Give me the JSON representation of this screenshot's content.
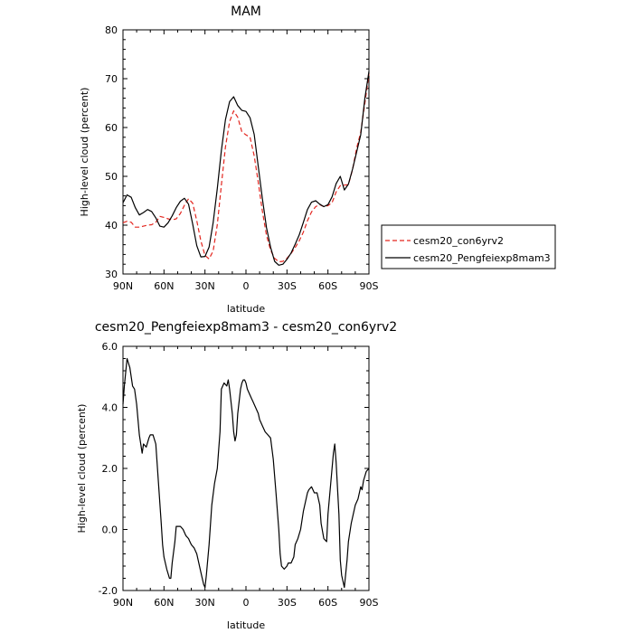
{
  "chart_data": [
    {
      "type": "line",
      "title": "MAM",
      "xlabel": "latitude",
      "ylabel": "High-level cloud (percent)",
      "xlim": [
        90,
        -90
      ],
      "ylim": [
        30,
        80
      ],
      "x_tick_labels": [
        "90N",
        "60N",
        "30N",
        "0",
        "30S",
        "60S",
        "90S"
      ],
      "y_tick_labels": [
        "30",
        "40",
        "50",
        "60",
        "70",
        "80"
      ],
      "legend_position": "right",
      "series": [
        {
          "name": "cesm20_con6yrv2",
          "color": "#e3261f",
          "style": "dashed",
          "x": [
            90,
            87,
            84,
            81,
            78,
            75,
            72,
            69,
            66,
            63,
            60,
            57,
            54,
            51,
            48,
            45,
            42,
            39,
            36,
            33,
            30,
            27,
            24,
            21,
            18,
            15,
            12,
            9,
            6,
            3,
            0,
            -3,
            -6,
            -9,
            -12,
            -15,
            -18,
            -21,
            -24,
            -27,
            -30,
            -33,
            -36,
            -39,
            -42,
            -45,
            -48,
            -51,
            -54,
            -57,
            -60,
            -63,
            -66,
            -69,
            -72,
            -75,
            -78,
            -81,
            -84,
            -87,
            -90
          ],
          "y": [
            40.5,
            40.8,
            40.6,
            39.6,
            39.6,
            39.8,
            40.0,
            40.1,
            40.6,
            41.8,
            41.6,
            41.3,
            41.1,
            41.3,
            42.4,
            44.1,
            45.4,
            44.5,
            40.9,
            36.8,
            33.8,
            33.1,
            34.7,
            40.1,
            48.2,
            56.0,
            61.2,
            63.4,
            62.1,
            59.1,
            58.5,
            58.0,
            54.2,
            48.8,
            42.9,
            37.9,
            34.9,
            33.2,
            32.5,
            32.6,
            33.2,
            34.2,
            35.4,
            36.8,
            38.6,
            40.9,
            42.7,
            43.8,
            44.2,
            43.8,
            44.0,
            44.6,
            46.8,
            48.1,
            48.2,
            48.3,
            51.4,
            55.8,
            59.0,
            65.0,
            71.0
          ]
        },
        {
          "name": "cesm20_Pengfeiexp8mam3",
          "color": "#000000",
          "style": "solid",
          "x": [
            90,
            87,
            84,
            81,
            78,
            75,
            72,
            69,
            66,
            63,
            60,
            57,
            54,
            51,
            48,
            45,
            42,
            39,
            36,
            33,
            30,
            27,
            24,
            21,
            18,
            15,
            12,
            9,
            6,
            3,
            0,
            -3,
            -6,
            -9,
            -12,
            -15,
            -18,
            -21,
            -24,
            -27,
            -30,
            -33,
            -36,
            -39,
            -42,
            -45,
            -48,
            -51,
            -54,
            -57,
            -60,
            -63,
            -66,
            -69,
            -72,
            -75,
            -78,
            -81,
            -84,
            -87,
            -90
          ],
          "y": [
            44.6,
            46.2,
            45.7,
            43.6,
            42.1,
            42.6,
            43.2,
            42.8,
            41.5,
            39.8,
            39.6,
            40.5,
            41.9,
            43.6,
            44.9,
            45.5,
            44.3,
            40.2,
            35.8,
            33.5,
            33.6,
            35.5,
            40.5,
            47.5,
            55.3,
            61.6,
            65.3,
            66.3,
            64.5,
            63.5,
            63.3,
            62.0,
            58.6,
            52.0,
            45.5,
            39.5,
            35.5,
            32.6,
            31.8,
            32.0,
            33.0,
            34.3,
            36.1,
            38.0,
            40.6,
            43.2,
            44.7,
            45.0,
            44.3,
            43.8,
            44.2,
            45.8,
            48.5,
            50.0,
            47.2,
            48.4,
            51.5,
            55.0,
            58.5,
            66.0,
            71.5
          ]
        }
      ]
    },
    {
      "type": "line",
      "title": "cesm20_Pengfeiexp8mam3 - cesm20_con6yrv2",
      "xlabel": "latitude",
      "ylabel": "High-level cloud (percent)",
      "xlim": [
        90,
        -90
      ],
      "ylim": [
        -2.0,
        6.0
      ],
      "x_tick_labels": [
        "90N",
        "60N",
        "30N",
        "0",
        "30S",
        "60S",
        "90S"
      ],
      "y_tick_labels": [
        "-2.0",
        "0.0",
        "2.0",
        "4.0",
        "6.0"
      ],
      "series": [
        {
          "color": "#000000",
          "style": "solid",
          "x": [
            90,
            89,
            87,
            85,
            83,
            81.5,
            80,
            78,
            76,
            75,
            73,
            71,
            70,
            68,
            66,
            64,
            62,
            61,
            60,
            58,
            56,
            55,
            54,
            52,
            51,
            50,
            48,
            46,
            45,
            44,
            42,
            41,
            40,
            38,
            36,
            35,
            33,
            31,
            30,
            29,
            27,
            25,
            23,
            21,
            19,
            18,
            16,
            14,
            13,
            12,
            10,
            9,
            8,
            7,
            6,
            4,
            3,
            2,
            1,
            0,
            -1,
            -2,
            -4,
            -5,
            -7,
            -9,
            -10,
            -12,
            -14,
            -16,
            -18,
            -20,
            -22,
            -24,
            -25,
            -26,
            -28,
            -30,
            -31,
            -33,
            -35,
            -36,
            -38,
            -40,
            -42,
            -44,
            -45,
            -46,
            -48,
            -50,
            -52,
            -54,
            -55,
            -57,
            -59,
            -60,
            -62,
            -64,
            -65,
            -66,
            -68,
            -69,
            -70,
            -72,
            -74,
            -75,
            -77,
            -79,
            -80,
            -82,
            -84,
            -85,
            -86,
            -88,
            -90
          ],
          "y": [
            4.1,
            4.7,
            5.6,
            5.3,
            4.7,
            4.6,
            4.1,
            3.1,
            2.5,
            2.8,
            2.7,
            3.0,
            3.1,
            3.1,
            2.8,
            1.5,
            0.2,
            -0.5,
            -0.9,
            -1.3,
            -1.6,
            -1.6,
            -1.1,
            -0.4,
            0.1,
            0.1,
            0.1,
            0.0,
            -0.1,
            -0.2,
            -0.3,
            -0.4,
            -0.5,
            -0.6,
            -0.8,
            -1.0,
            -1.4,
            -1.8,
            -1.9,
            -1.5,
            -0.5,
            0.8,
            1.5,
            2.0,
            3.2,
            4.6,
            4.8,
            4.7,
            4.9,
            4.6,
            3.8,
            3.2,
            2.9,
            3.1,
            3.8,
            4.6,
            4.8,
            4.9,
            4.9,
            4.8,
            4.6,
            4.5,
            4.3,
            4.2,
            4.0,
            3.8,
            3.6,
            3.4,
            3.2,
            3.1,
            3.0,
            2.3,
            1.2,
            0.0,
            -0.8,
            -1.2,
            -1.3,
            -1.2,
            -1.1,
            -1.1,
            -0.9,
            -0.5,
            -0.3,
            0.0,
            0.6,
            1.0,
            1.2,
            1.3,
            1.4,
            1.2,
            1.2,
            0.8,
            0.2,
            -0.3,
            -0.4,
            0.5,
            1.5,
            2.5,
            2.8,
            2.2,
            0.5,
            -1.0,
            -1.5,
            -1.9,
            -1.0,
            -0.4,
            0.2,
            0.6,
            0.8,
            1.0,
            1.4,
            1.3,
            1.6,
            1.9,
            2.0
          ]
        }
      ]
    }
  ]
}
